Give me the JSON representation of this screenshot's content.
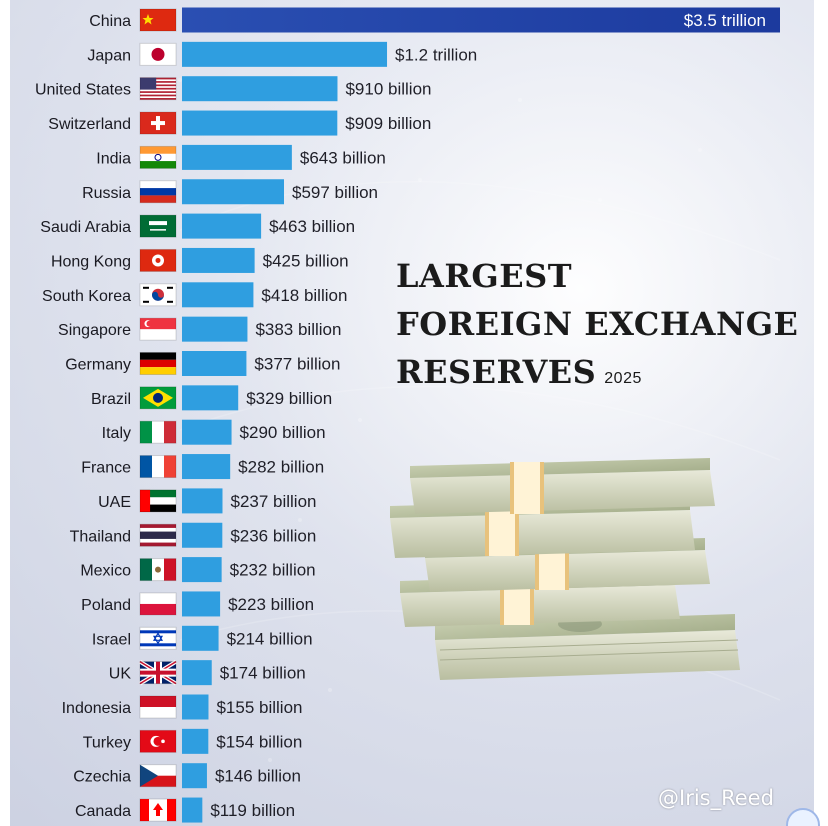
{
  "title": {
    "line1": "LARGEST",
    "line2": "FOREIGN EXCHANGE",
    "line3": "RESERVES",
    "year": "2025"
  },
  "watermark": "@Iris_Reed",
  "colors": {
    "bar": "#2f9ee0",
    "bar_top_start": "#2a4fb2",
    "bar_top_end": "#1c3a9e"
  },
  "chart_data": {
    "type": "bar",
    "orientation": "horizontal",
    "categories": [
      "China",
      "Japan",
      "United States",
      "Switzerland",
      "India",
      "Russia",
      "Saudi Arabia",
      "Hong Kong",
      "South Korea",
      "Singapore",
      "Germany",
      "Brazil",
      "Italy",
      "France",
      "UAE",
      "Thailand",
      "Mexico",
      "Poland",
      "Israel",
      "UK",
      "Indonesia",
      "Turkey",
      "Czechia",
      "Canada"
    ],
    "values": [
      3500,
      1200,
      910,
      909,
      643,
      597,
      463,
      425,
      418,
      383,
      377,
      329,
      290,
      282,
      237,
      236,
      232,
      223,
      214,
      174,
      155,
      154,
      146,
      119
    ],
    "value_labels": [
      "$3.5 trillion",
      "$1.2 trillion",
      "$910 billion",
      "$909 billion",
      "$643 billion",
      "$597 billion",
      "$463 billion",
      "$425 billion",
      "$418 billion",
      "$383 billion",
      "$377 billion",
      "$329 billion",
      "$290 billion",
      "$282 billion",
      "$237 billion",
      "$236 billion",
      "$232 billion",
      "$223 billion",
      "$214 billion",
      "$174 billion",
      "$155 billion",
      "$154 billion",
      "$146 billion",
      "$119 billion"
    ],
    "flag_icons": [
      "china-flag-icon",
      "japan-flag-icon",
      "united-states-flag-icon",
      "switzerland-flag-icon",
      "india-flag-icon",
      "russia-flag-icon",
      "saudi-arabia-flag-icon",
      "hong-kong-flag-icon",
      "south-korea-flag-icon",
      "singapore-flag-icon",
      "germany-flag-icon",
      "brazil-flag-icon",
      "italy-flag-icon",
      "france-flag-icon",
      "uae-flag-icon",
      "thailand-flag-icon",
      "mexico-flag-icon",
      "poland-flag-icon",
      "israel-flag-icon",
      "uk-flag-icon",
      "indonesia-flag-icon",
      "turkey-flag-icon",
      "czechia-flag-icon",
      "canada-flag-icon"
    ],
    "unit": "billion USD",
    "xlim": [
      0,
      3500
    ],
    "grid": false,
    "legend": "none"
  }
}
